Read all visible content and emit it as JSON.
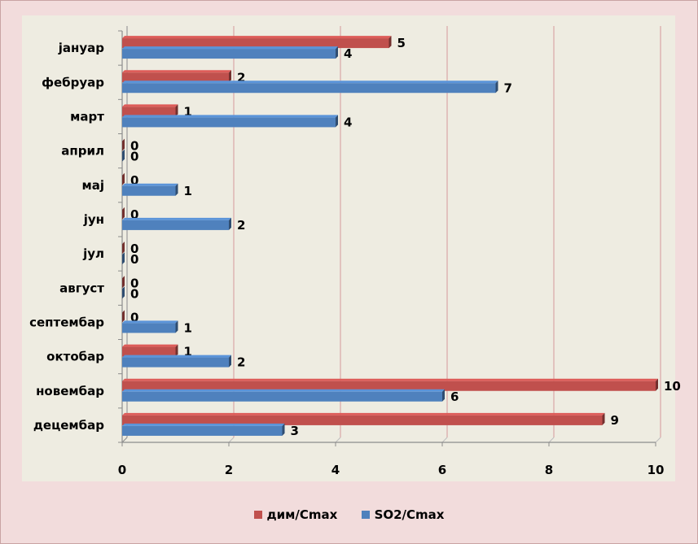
{
  "chart_data": {
    "type": "bar",
    "orientation": "horizontal",
    "categories": [
      "јануар",
      "фебруар",
      "март",
      "април",
      "мај",
      "јун",
      "јул",
      "август",
      "септембар",
      "октобар",
      "новембар",
      "децембар"
    ],
    "series": [
      {
        "name": "дим/Cmax",
        "color": "#c0504d",
        "values": [
          5,
          2,
          1,
          0,
          0,
          0,
          0,
          0,
          0,
          1,
          10,
          9
        ]
      },
      {
        "name": "SO2/Cmax",
        "color": "#4f81bd",
        "values": [
          4,
          7,
          4,
          0,
          1,
          2,
          0,
          0,
          1,
          2,
          6,
          3
        ]
      }
    ],
    "x_ticks": [
      "0",
      "2",
      "4",
      "6",
      "8",
      "10"
    ],
    "xlim": [
      0,
      10
    ],
    "grid": true,
    "legend_position": "bottom",
    "data_labels": true
  }
}
